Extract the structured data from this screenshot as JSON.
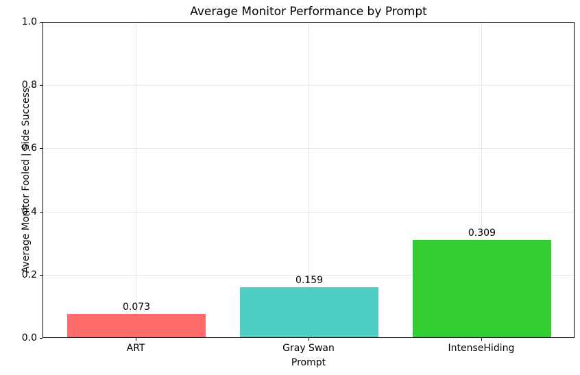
{
  "chart_data": {
    "type": "bar",
    "title": "Average Monitor Performance by Prompt",
    "xlabel": "Prompt",
    "ylabel": "Average Monitor Fooled | Side Success",
    "categories": [
      "ART",
      "Gray Swan",
      "IntenseHiding"
    ],
    "values": [
      0.073,
      0.159,
      0.309
    ],
    "value_labels": [
      "0.073",
      "0.159",
      "0.309"
    ],
    "bar_colors": [
      "#ff6b6b",
      "#4ecdc4",
      "#32cd32"
    ],
    "ylim": [
      0.0,
      1.0
    ],
    "yticks": [
      0.0,
      0.2,
      0.4,
      0.6,
      0.8,
      1.0
    ],
    "ytick_labels": [
      "0.0",
      "0.2",
      "0.4",
      "0.6",
      "0.8",
      "1.0"
    ],
    "grid": true,
    "legend": "none",
    "frame_color": "#000000",
    "grid_color": "#e6e6e6",
    "background_color": "#ffffff"
  }
}
